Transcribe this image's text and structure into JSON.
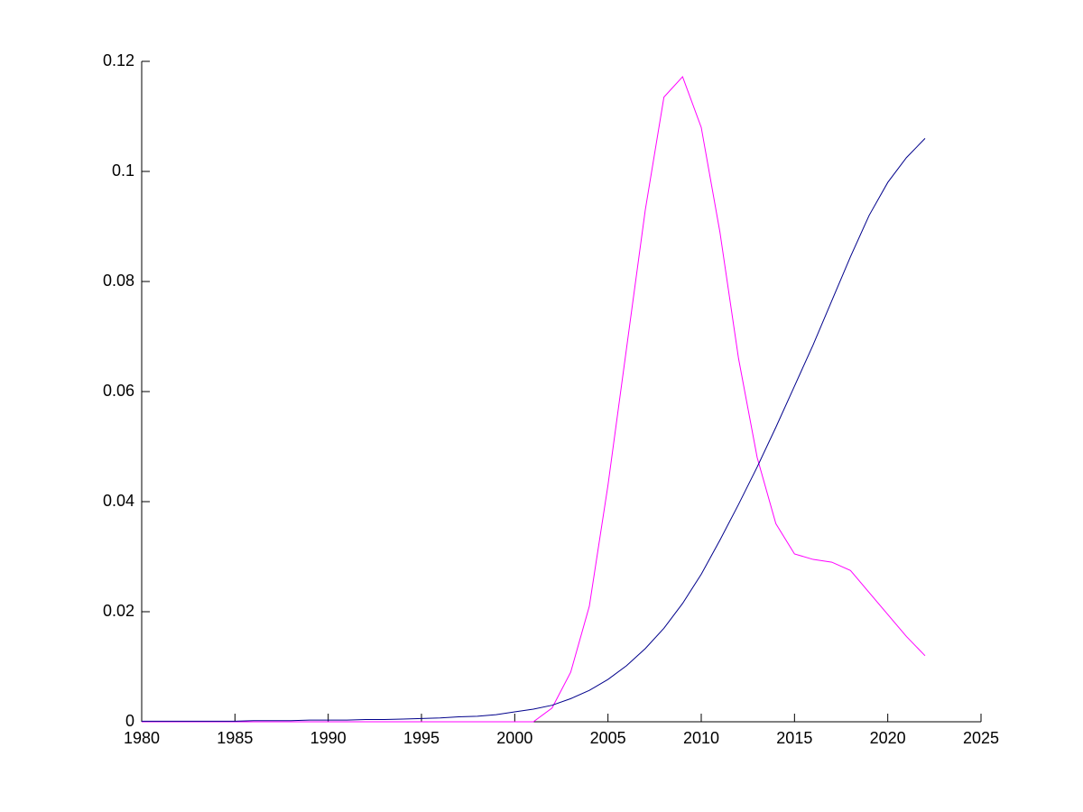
{
  "chart_data": {
    "type": "line",
    "x": [
      1980,
      1981,
      1982,
      1983,
      1984,
      1985,
      1986,
      1987,
      1988,
      1989,
      1990,
      1991,
      1992,
      1993,
      1994,
      1995,
      1996,
      1997,
      1998,
      1999,
      2000,
      2001,
      2002,
      2003,
      2004,
      2005,
      2006,
      2007,
      2008,
      2009,
      2010,
      2011,
      2012,
      2013,
      2014,
      2015,
      2016,
      2017,
      2018,
      2019,
      2020,
      2021,
      2022
    ],
    "series": [
      {
        "color": "#ff00ff",
        "values": [
          0,
          0,
          0,
          0,
          0,
          0,
          0,
          0,
          0,
          0,
          0,
          0,
          0,
          0,
          0,
          0,
          0,
          0,
          0,
          0,
          0,
          0,
          0.0025,
          0.009,
          0.021,
          0.043,
          0.068,
          0.093,
          0.1135,
          0.1172,
          0.108,
          0.089,
          0.066,
          0.048,
          0.036,
          0.0305,
          0.0295,
          0.029,
          0.0275,
          0.0235,
          0.0195,
          0.0155,
          0.012
        ]
      },
      {
        "color": "#00008b",
        "values": [
          0.0001,
          0.0001,
          0.0001,
          0.0001,
          0.0001,
          0.0001,
          0.0002,
          0.0002,
          0.0002,
          0.0003,
          0.0003,
          0.0003,
          0.0004,
          0.0004,
          0.0005,
          0.0006,
          0.0007,
          0.0009,
          0.001,
          0.0013,
          0.0018,
          0.0023,
          0.003,
          0.0042,
          0.0057,
          0.0077,
          0.0102,
          0.0133,
          0.017,
          0.0215,
          0.0268,
          0.033,
          0.0395,
          0.0463,
          0.0535,
          0.061,
          0.0685,
          0.0765,
          0.0845,
          0.092,
          0.098,
          0.1025,
          0.106
        ]
      }
    ],
    "xlim": [
      1980,
      2025
    ],
    "xticks": [
      1980,
      1985,
      1990,
      1995,
      2000,
      2005,
      2010,
      2015,
      2020,
      2025
    ],
    "ylim": [
      0,
      0.12
    ],
    "yticks": [
      0,
      0.02,
      0.04,
      0.06,
      0.08,
      0.1,
      0.12
    ]
  }
}
